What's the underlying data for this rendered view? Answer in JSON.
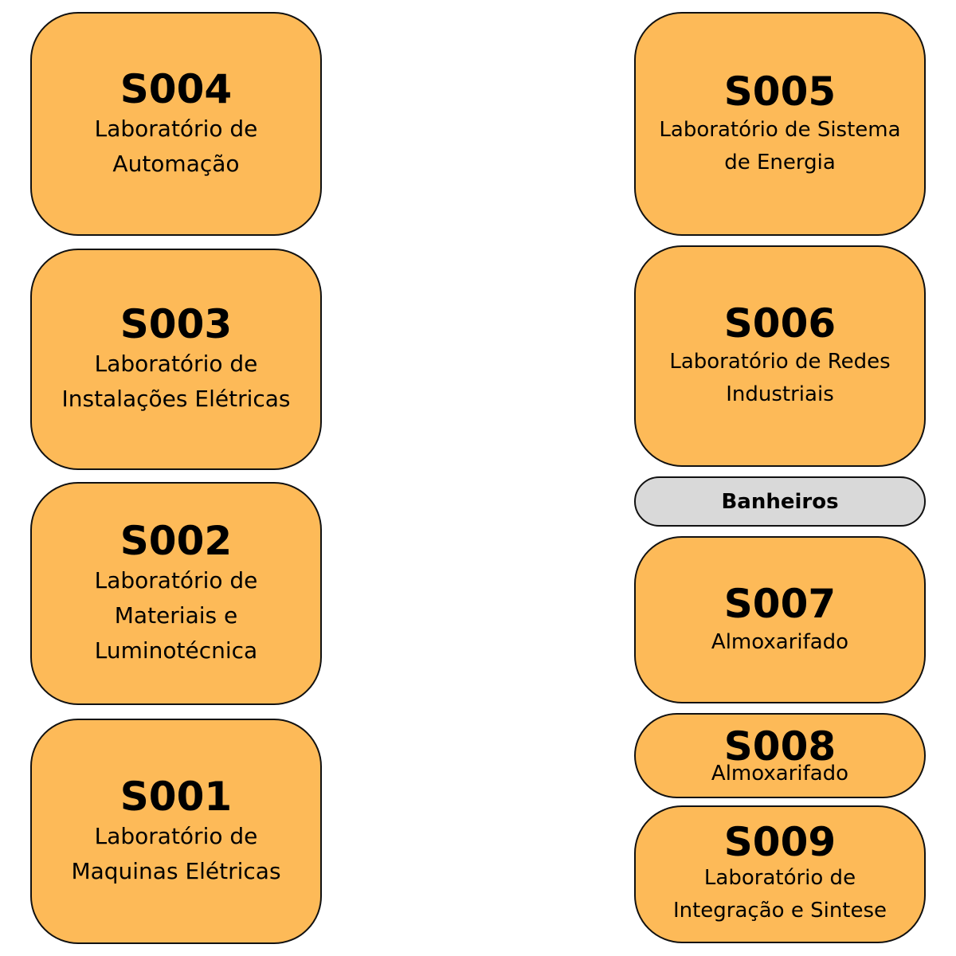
{
  "colors": {
    "room_fill": "#fdba58",
    "utility_fill": "#d9d9d9",
    "border": "#111111",
    "text": "#000000",
    "background": "#ffffff"
  },
  "rooms": {
    "s004": {
      "code": "S004",
      "name": "Laboratório de\nAutomação"
    },
    "s003": {
      "code": "S003",
      "name": "Laboratório de\nInstalações Elétricas"
    },
    "s002": {
      "code": "S002",
      "name": "Laboratório de\nMateriais e\nLuminotécnica"
    },
    "s001": {
      "code": "S001",
      "name": "Laboratório de\nMaquinas Elétricas"
    },
    "s005": {
      "code": "S005",
      "name": "Laboratório de Sistema\nde Energia"
    },
    "s006": {
      "code": "S006",
      "name": "Laboratório de Redes\nIndustriais"
    },
    "s007": {
      "code": "S007",
      "name": "Almoxarifado"
    },
    "s008": {
      "code": "S008",
      "name": "Almoxarifado"
    },
    "s009": {
      "code": "S009",
      "name": "Laboratório de\nIntegração e Sintese"
    }
  },
  "utilities": {
    "banheiros": {
      "label": "Banheiros"
    }
  }
}
